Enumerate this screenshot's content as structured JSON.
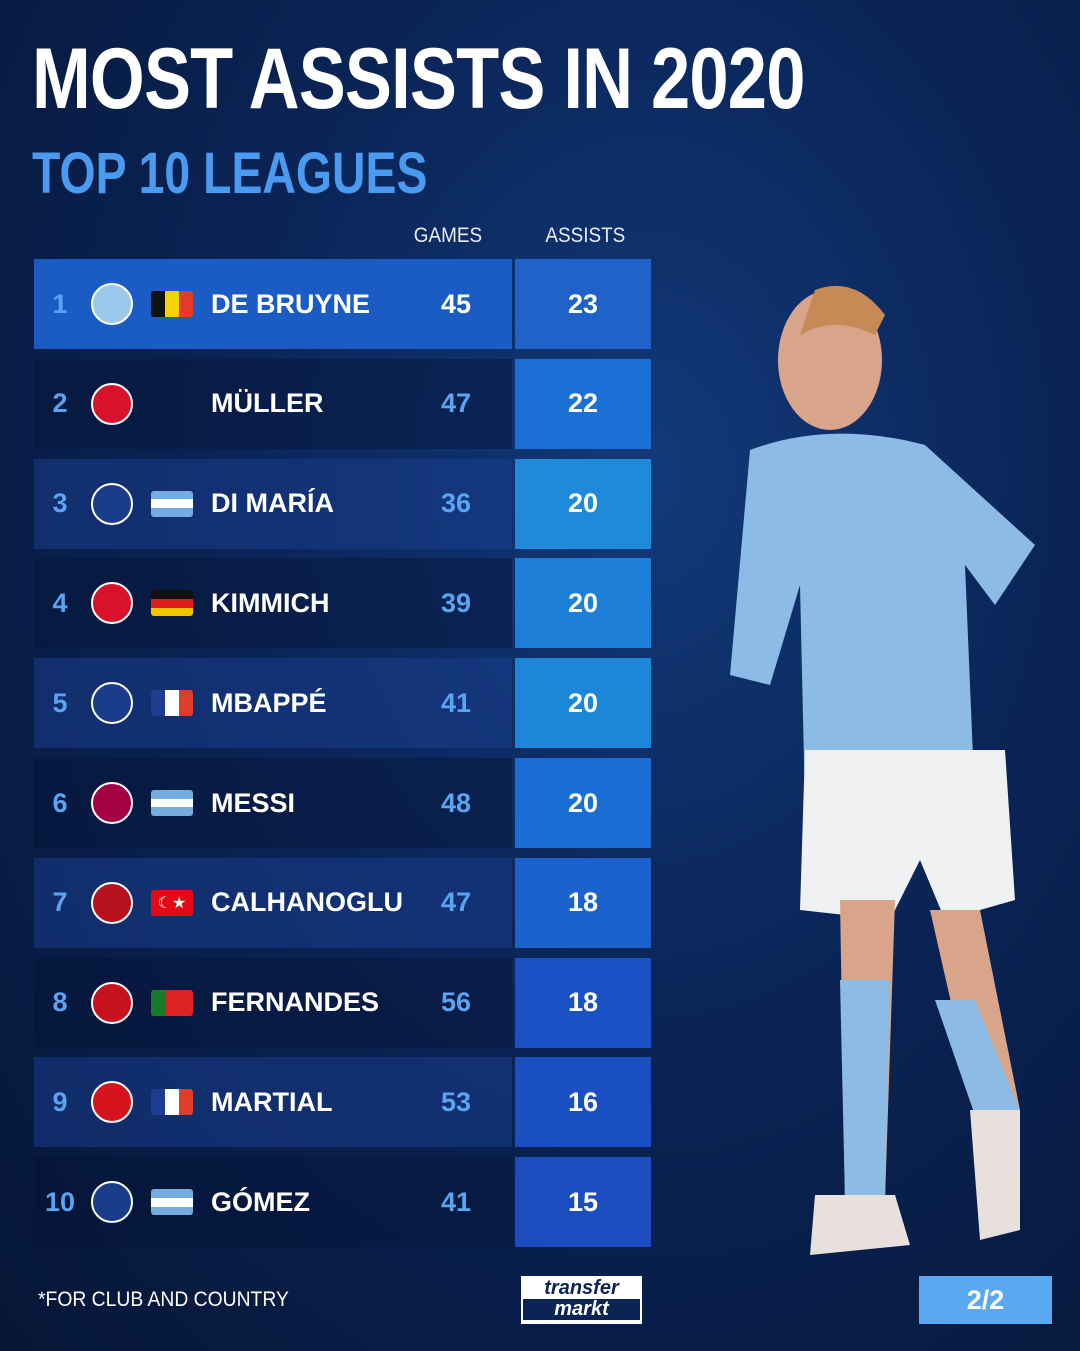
{
  "title": "MOST ASSISTS IN 2020",
  "subtitle": "TOP 10 LEAGUES",
  "headers": {
    "games": "GAMES",
    "assists": "ASSISTS"
  },
  "rows": [
    {
      "rank": "1",
      "club": "manchester-city-crest",
      "flag": "belgium-flag",
      "name": "DE BRUYNE",
      "games": "45",
      "assists": "23"
    },
    {
      "rank": "2",
      "club": "bayern-munich-crest",
      "flag": "",
      "name": "MÜLLER",
      "games": "47",
      "assists": "22"
    },
    {
      "rank": "3",
      "club": "psg-crest",
      "flag": "argentina-flag",
      "name": "DI MARÍA",
      "games": "36",
      "assists": "20"
    },
    {
      "rank": "4",
      "club": "bayern-munich-crest",
      "flag": "germany-flag",
      "name": "KIMMICH",
      "games": "39",
      "assists": "20"
    },
    {
      "rank": "5",
      "club": "psg-crest",
      "flag": "france-flag",
      "name": "MBAPPÉ",
      "games": "41",
      "assists": "20"
    },
    {
      "rank": "6",
      "club": "barcelona-crest",
      "flag": "argentina-flag",
      "name": "MESSI",
      "games": "48",
      "assists": "20"
    },
    {
      "rank": "7",
      "club": "ac-milan-crest",
      "flag": "turkey-flag",
      "name": "CALHANOGLU",
      "games": "47",
      "assists": "18"
    },
    {
      "rank": "8",
      "club": "sporting-manchester-united-crests",
      "flag": "portugal-flag",
      "name": "FERNANDES",
      "games": "56",
      "assists": "18"
    },
    {
      "rank": "9",
      "club": "manchester-united-crest",
      "flag": "france-flag",
      "name": "MARTIAL",
      "games": "53",
      "assists": "16"
    },
    {
      "rank": "10",
      "club": "atalanta-crest",
      "flag": "argentina-flag",
      "name": "GÓMEZ",
      "games": "41",
      "assists": "15"
    }
  ],
  "footnote": "*FOR CLUB AND COUNTRY",
  "logo": {
    "line1": "transfer",
    "line2": "markt"
  },
  "page": "2/2",
  "colors": {
    "accent": "#4a9af0",
    "highlight_row": "#1b5cc4",
    "page_badge": "#5aa8f2"
  }
}
